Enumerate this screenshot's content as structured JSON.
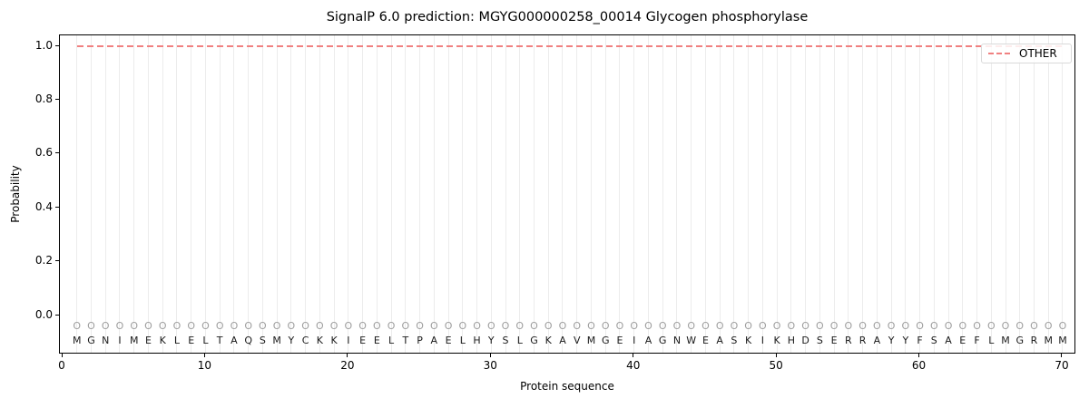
{
  "figure": {
    "title": "SignalP 6.0 prediction: MGYG000000258_00014 Glycogen phosphorylase",
    "xlabel": "Protein sequence",
    "ylabel": "Probability",
    "legend": {
      "label": "OTHER"
    }
  },
  "chart_data": {
    "type": "line",
    "title": "SignalP 6.0 prediction: MGYG000000258_00014 Glycogen phosphorylase",
    "xlabel": "Protein sequence",
    "ylabel": "Probability",
    "xlim": [
      -0.2,
      71
    ],
    "ylim": [
      -0.145,
      1.04
    ],
    "x_ticks": [
      0,
      10,
      20,
      30,
      40,
      50,
      60,
      70
    ],
    "y_ticks": [
      "0.0",
      "0.2",
      "0.4",
      "0.6",
      "0.8",
      "1.0"
    ],
    "grid": {
      "vertical_per_residue": true,
      "horizontal": false,
      "color": "#ececec"
    },
    "legend_position": "upper right",
    "series": [
      {
        "name": "OTHER",
        "style": "dashed",
        "color": "#f08080",
        "y_constant": 1.0,
        "x_start": 1,
        "x_end": 70
      }
    ],
    "sequence": "MGNIMEKLELTAQSMYCKKIEELTPAELHYSLGKAVMGEIAGNWEASKIKHDSERRAYYFSAEFLMGRMM",
    "sequence_length": 70,
    "per_position_marker": "O",
    "colors": {
      "other_line": "#f08080",
      "gridline": "#ececec",
      "position_marker": "#9e9e9e",
      "sequence_letter": "#1a1a1a",
      "spine": "#000000"
    }
  }
}
